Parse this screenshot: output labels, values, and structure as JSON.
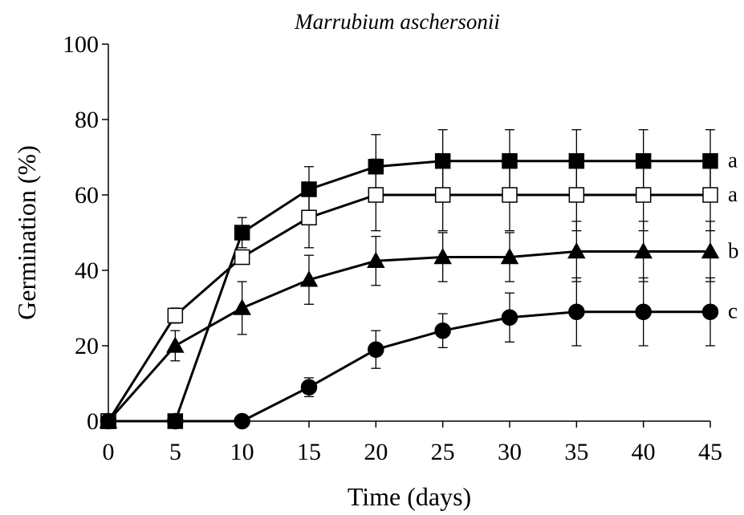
{
  "chart_data": {
    "type": "line",
    "title": "Marrubium aschersonii",
    "xlabel": "Time (days)",
    "ylabel": "Germination (%)",
    "x": [
      0,
      5,
      10,
      15,
      20,
      25,
      30,
      35,
      40,
      45
    ],
    "xlim": [
      0,
      45
    ],
    "ylim": [
      0,
      100
    ],
    "xticks": [
      "0",
      "5",
      "10",
      "15",
      "20",
      "25",
      "30",
      "35",
      "40",
      "45"
    ],
    "yticks": [
      "0",
      "20",
      "40",
      "60",
      "80",
      "100"
    ],
    "grid": false,
    "legend": "none",
    "series": [
      {
        "marker": "square-filled",
        "end_label": "a",
        "values": [
          0,
          0,
          50,
          61.5,
          67.5,
          69,
          69,
          69,
          69,
          69
        ],
        "err": [
          0,
          0,
          4,
          6,
          8.5,
          8.3,
          8.3,
          8.3,
          8.3,
          8.3
        ]
      },
      {
        "marker": "square-open",
        "end_label": "a",
        "values": [
          0,
          28,
          43.5,
          54,
          60,
          60,
          60,
          60,
          60,
          60
        ],
        "err": [
          0,
          2,
          0,
          8,
          9.5,
          9.5,
          9.5,
          9.5,
          9.5,
          9.5
        ]
      },
      {
        "marker": "triangle-filled",
        "end_label": "b",
        "values": [
          0,
          20,
          30,
          37.5,
          42.5,
          43.5,
          43.5,
          45,
          45,
          45
        ],
        "err": [
          0,
          4,
          7,
          6.5,
          6.5,
          6.5,
          6.5,
          8,
          8,
          8
        ]
      },
      {
        "marker": "circle-filled",
        "end_label": "c",
        "values": [
          0,
          0,
          0,
          9,
          19,
          24,
          27.5,
          29,
          29,
          29
        ],
        "err": [
          0,
          0,
          0,
          2.5,
          5,
          4.5,
          6.5,
          9,
          9,
          9
        ]
      }
    ]
  }
}
